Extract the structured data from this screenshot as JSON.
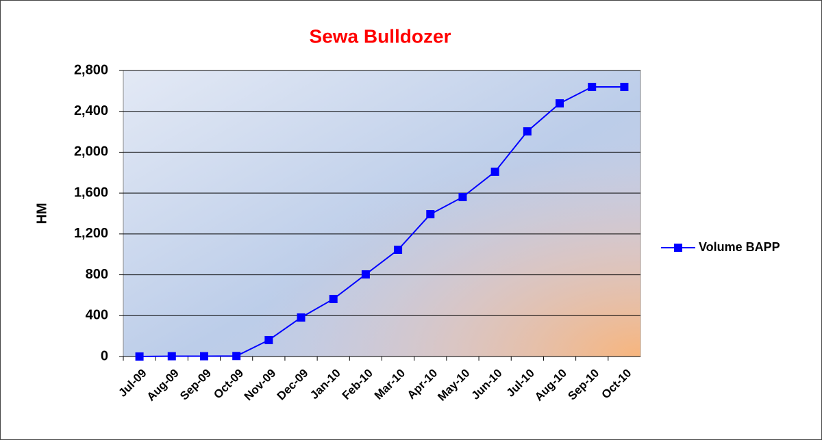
{
  "chart_data": {
    "type": "line",
    "title": "Sewa Bulldozer",
    "y_label": "HM",
    "categories": [
      "Jul-09",
      "Aug-09",
      "Sep-09",
      "Oct-09",
      "Nov-09",
      "Dec-09",
      "Jan-10",
      "Feb-10",
      "Mar-10",
      "Apr-10",
      "May-10",
      "Jun-10",
      "Jul-10",
      "Aug-10",
      "Sep-10",
      "Oct-10"
    ],
    "series": [
      {
        "name": "Volume BAPP",
        "color": "#0000ff",
        "values": [
          0,
          3,
          3,
          5,
          161,
          382,
          563,
          804,
          1045,
          1393,
          1561,
          1809,
          2204,
          2478,
          2639,
          2639
        ]
      }
    ],
    "ylim": [
      0,
      2800
    ],
    "yticks": [
      0,
      400,
      800,
      {
        "value": 1200,
        "label": "1,200"
      },
      {
        "value": 1600,
        "label": "1,600"
      },
      {
        "value": 2000,
        "label": "2,000"
      },
      {
        "value": 2400,
        "label": "2,400"
      },
      {
        "value": 2800,
        "label": "2,800"
      }
    ],
    "grid": true,
    "legend": "right"
  }
}
